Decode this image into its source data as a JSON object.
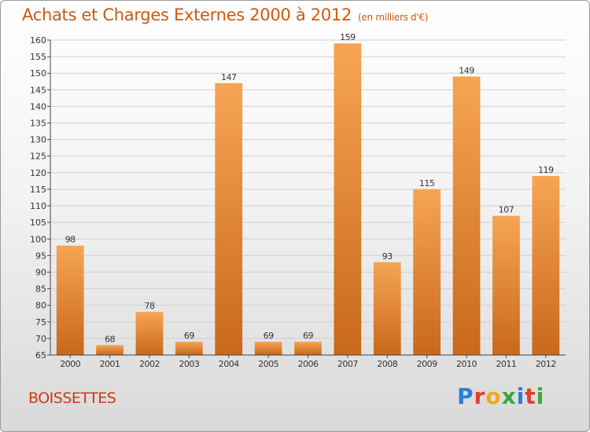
{
  "title": "Achats et Charges Externes 2000 à 2012",
  "unit": "(en milliers d'€)",
  "city": "BOISSETTES",
  "logo": {
    "text": "Proxiti"
  },
  "colors": {
    "bar_top": "#f6a554",
    "bar_bottom": "#c9681a",
    "title": "#cc5a12",
    "grid": "#d0d0d0"
  },
  "chart_data": {
    "type": "bar",
    "categories": [
      "2000",
      "2001",
      "2002",
      "2003",
      "2004",
      "2005",
      "2006",
      "2007",
      "2008",
      "2009",
      "2010",
      "2011",
      "2012"
    ],
    "values": [
      98,
      68,
      78,
      69,
      147,
      69,
      69,
      159,
      93,
      115,
      149,
      107,
      119
    ],
    "ylim": [
      65,
      160
    ],
    "ytick_step": 5,
    "grid": true
  }
}
